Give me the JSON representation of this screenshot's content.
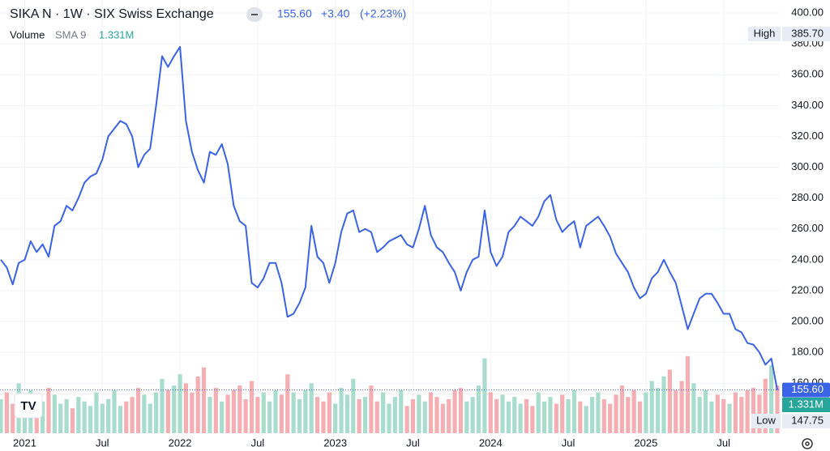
{
  "chart_data": {
    "type": "line",
    "title": "SIKA N · 1W · SIX Swiss Exchange",
    "change": "+3.40",
    "change_percent": "(+2.23%)",
    "volume_label": "Volume",
    "sma_label": "SMA 9",
    "volume_sma": "1.331M",
    "last": {
      "value": 155.6,
      "label": "155.60"
    },
    "high_label": "High",
    "high": {
      "value": 385.7,
      "label": "385.70"
    },
    "low_label": "Low",
    "low": {
      "value": 147.75,
      "label": "147.75"
    },
    "ylim": [
      127.6,
      408.4
    ],
    "yticks": [
      {
        "value": 160,
        "label": "160.00"
      },
      {
        "value": 180,
        "label": "180.00"
      },
      {
        "value": 200,
        "label": "200.00"
      },
      {
        "value": 220,
        "label": "220.00"
      },
      {
        "value": 240,
        "label": "240.00"
      },
      {
        "value": 260,
        "label": "260.00"
      },
      {
        "value": 280,
        "label": "280.00"
      },
      {
        "value": 300,
        "label": "300.00"
      },
      {
        "value": 320,
        "label": "320.00"
      },
      {
        "value": 340,
        "label": "340.00"
      },
      {
        "value": 360,
        "label": "360.00"
      },
      {
        "value": 380,
        "label": "380.00"
      },
      {
        "value": 400,
        "label": "400.00"
      }
    ],
    "grid": true,
    "categories": [
      null,
      null,
      null,
      null,
      "2021",
      null,
      null,
      null,
      null,
      null,
      null,
      null,
      null,
      null,
      null,
      null,
      null,
      "Jul",
      null,
      null,
      null,
      null,
      null,
      null,
      null,
      null,
      null,
      null,
      null,
      null,
      "2022",
      null,
      null,
      null,
      null,
      null,
      null,
      null,
      null,
      null,
      null,
      null,
      null,
      "Jul",
      null,
      null,
      null,
      null,
      null,
      null,
      null,
      null,
      null,
      null,
      null,
      null,
      "2023",
      null,
      null,
      null,
      null,
      null,
      null,
      null,
      null,
      null,
      null,
      null,
      null,
      "Jul",
      null,
      null,
      null,
      null,
      null,
      null,
      null,
      null,
      null,
      null,
      null,
      null,
      "2024",
      null,
      null,
      null,
      null,
      null,
      null,
      null,
      null,
      null,
      null,
      null,
      null,
      "Jul",
      null,
      null,
      null,
      null,
      null,
      null,
      null,
      null,
      null,
      null,
      null,
      null,
      "2025",
      null,
      null,
      null,
      null,
      null,
      null,
      null,
      null,
      null,
      null,
      null,
      null,
      "Jul",
      null,
      null,
      null,
      null,
      null,
      null,
      null,
      null,
      null
    ],
    "series": [
      {
        "color": "#3b63e8",
        "values": [
          240,
          235,
          224,
          238,
          240,
          252,
          245,
          250,
          242,
          262,
          265,
          275,
          272,
          280,
          290,
          294,
          296,
          305,
          320,
          325,
          330,
          328,
          320,
          300,
          308,
          312,
          340,
          372,
          365,
          372,
          378,
          330,
          310,
          298,
          290,
          310,
          308,
          315,
          302,
          275,
          265,
          262,
          225,
          222,
          228,
          238,
          238,
          225,
          203,
          205,
          212,
          222,
          262,
          242,
          238,
          225,
          238,
          258,
          270,
          272,
          258,
          260,
          258,
          245,
          248,
          252,
          254,
          256,
          250,
          248,
          260,
          275,
          256,
          248,
          245,
          238,
          232,
          220,
          232,
          240,
          242,
          272,
          245,
          236,
          242,
          258,
          262,
          268,
          265,
          262,
          268,
          278,
          282,
          266,
          258,
          262,
          265,
          248,
          262,
          265,
          268,
          262,
          255,
          244,
          238,
          232,
          222,
          215,
          218,
          228,
          232,
          240,
          232,
          225,
          210,
          195,
          205,
          215,
          218,
          218,
          212,
          205,
          205,
          195,
          193,
          186,
          185,
          180,
          172,
          176,
          155.6
        ]
      }
    ],
    "volume": {
      "up_color": "#a8dccd",
      "down_color": "#f5aeb1",
      "values": [
        1.5,
        1.8,
        1.3,
        2.2,
        1.6,
        1.9,
        1.2,
        1.4,
        2.0,
        1.7,
        1.3,
        1.5,
        1.1,
        1.6,
        1.4,
        1.2,
        1.8,
        1.3,
        1.5,
        1.9,
        1.2,
        1.4,
        1.6,
        2.0,
        1.7,
        1.3,
        1.8,
        2.4,
        1.9,
        2.1,
        2.6,
        2.2,
        1.8,
        2.5,
        2.9,
        1.6,
        2.0,
        1.4,
        1.7,
        1.9,
        2.1,
        1.5,
        2.3,
        1.6,
        1.8,
        1.4,
        1.9,
        1.7,
        2.6,
        1.8,
        1.5,
        1.9,
        2.2,
        1.6,
        1.4,
        1.8,
        1.3,
        2.0,
        1.7,
        2.4,
        1.5,
        1.6,
        2.1,
        1.4,
        1.8,
        1.3,
        1.6,
        1.9,
        1.2,
        1.5,
        1.7,
        1.4,
        1.8,
        1.6,
        1.3,
        1.5,
        1.9,
        2.0,
        1.4,
        1.6,
        2.1,
        3.3,
        1.8,
        1.5,
        1.7,
        1.4,
        1.6,
        1.3,
        1.5,
        1.2,
        1.8,
        1.4,
        1.6,
        1.3,
        1.7,
        1.5,
        1.9,
        1.4,
        1.2,
        1.6,
        1.8,
        1.5,
        1.3,
        1.7,
        2.1,
        1.6,
        1.9,
        1.4,
        1.8,
        2.3,
        2.0,
        2.5,
        2.8,
        1.9,
        2.3,
        3.4,
        2.2,
        1.6,
        1.9,
        1.4,
        1.7,
        1.5,
        1.3,
        1.8,
        1.6,
        1.9,
        2.0,
        1.7,
        2.4,
        3.0,
        2.1
      ]
    }
  }
}
